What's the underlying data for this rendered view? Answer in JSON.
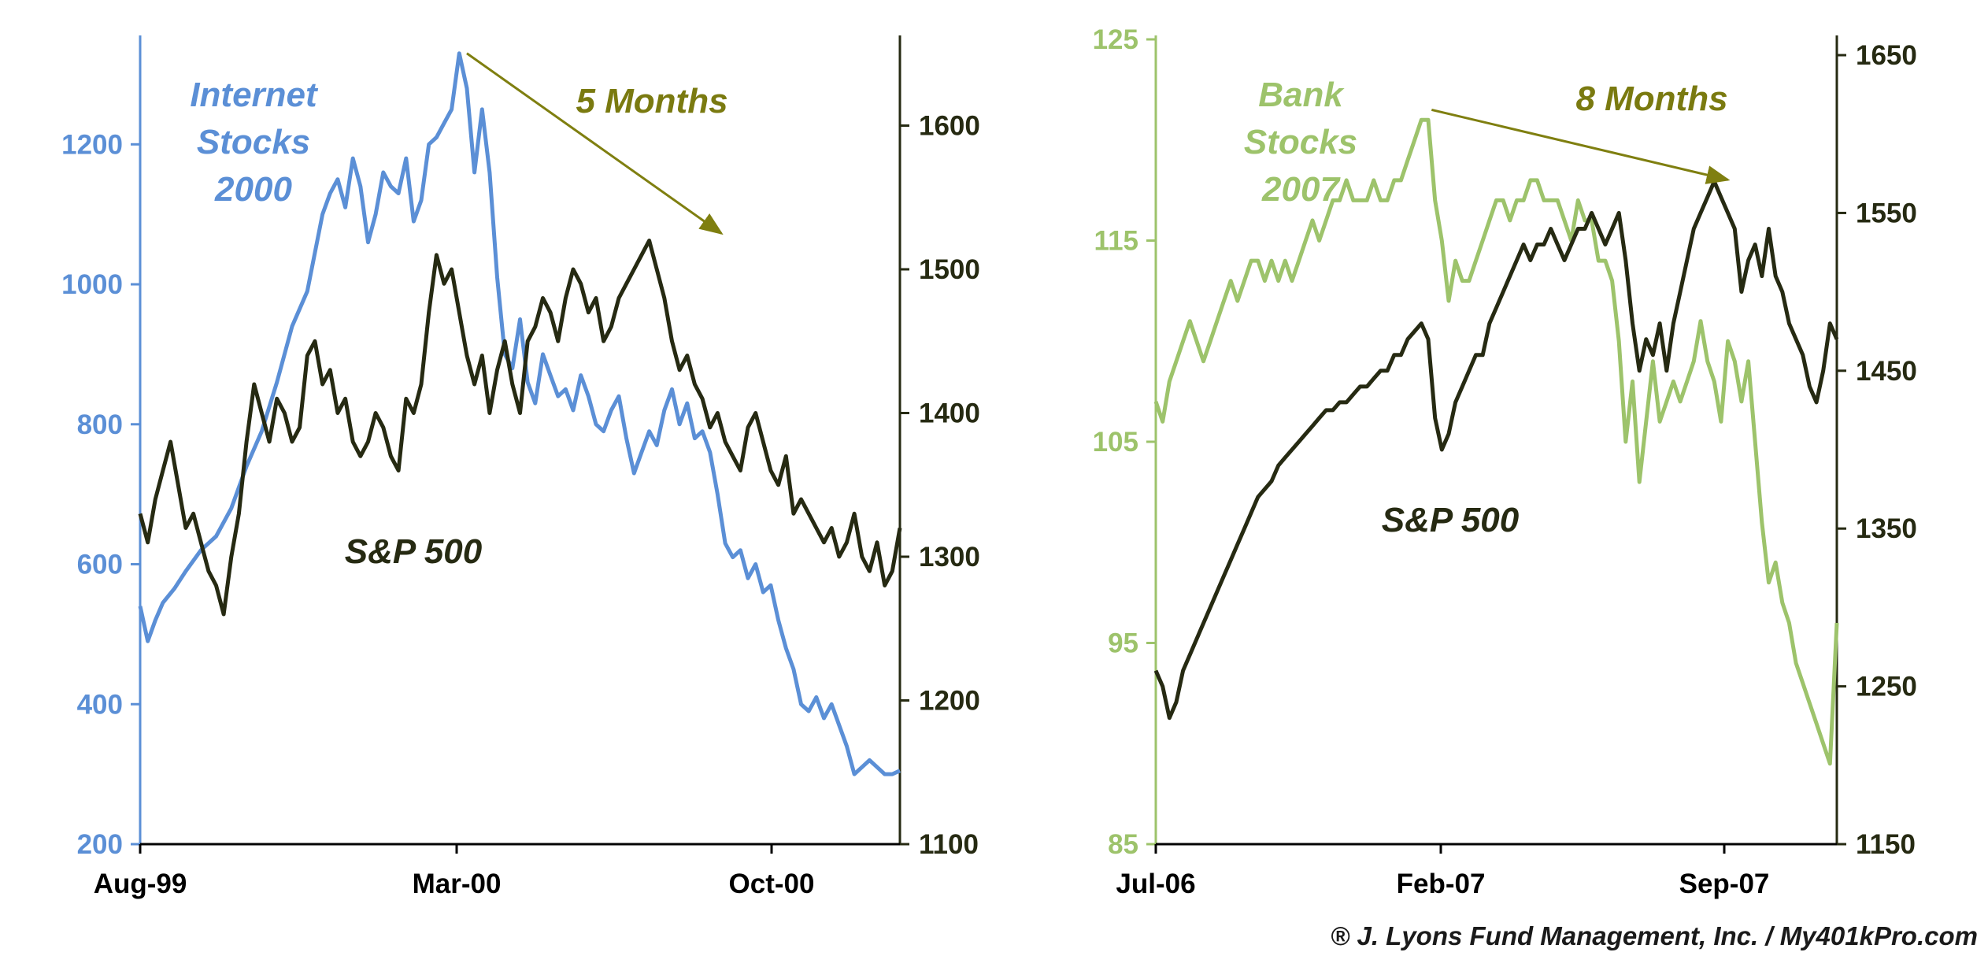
{
  "colors": {
    "internet": "#5B8FD6",
    "sp500": "#262A12",
    "bank": "#9DC36B",
    "months_text": "#7A7A10",
    "arrow": "#7F7F10"
  },
  "credit": "® J. Lyons Fund Management, Inc. / My401kPro.com",
  "chart_data": [
    {
      "type": "line",
      "title": "",
      "x_categories": [
        "Aug-99",
        "Mar-00",
        "Oct-00"
      ],
      "left_axis": {
        "ticks": [
          200,
          400,
          600,
          800,
          1000,
          1200
        ],
        "range": [
          200,
          1350
        ],
        "color": "#5B8FD6"
      },
      "right_axis": {
        "ticks": [
          1100,
          1200,
          1300,
          1400,
          1500,
          1600
        ],
        "range": [
          1100,
          1660
        ],
        "color": "#262A12"
      },
      "annotations": {
        "series_label_lines": [
          "Internet",
          "Stocks",
          "2000"
        ],
        "sp_label": "S&P 500",
        "months_label": "5 Months"
      },
      "arrow": {
        "from": {
          "x": 0.43,
          "value": 1330,
          "axis": "left"
        },
        "to": {
          "x": 0.765,
          "value": 1525,
          "axis": "right"
        }
      },
      "series": [
        {
          "axis": "left",
          "x": [
            0.0,
            0.01,
            0.02,
            0.03,
            0.045,
            0.06,
            0.08,
            0.1,
            0.12,
            0.14,
            0.16,
            0.18,
            0.2,
            0.22,
            0.24,
            0.25,
            0.26,
            0.27,
            0.28,
            0.29,
            0.3,
            0.31,
            0.32,
            0.33,
            0.34,
            0.35,
            0.36,
            0.37,
            0.38,
            0.39,
            0.4,
            0.41,
            0.42,
            0.43,
            0.44,
            0.45,
            0.46,
            0.47,
            0.48,
            0.49,
            0.5,
            0.51,
            0.52,
            0.53,
            0.54,
            0.55,
            0.56,
            0.57,
            0.58,
            0.59,
            0.6,
            0.61,
            0.62,
            0.63,
            0.64,
            0.65,
            0.66,
            0.67,
            0.68,
            0.69,
            0.7,
            0.71,
            0.72,
            0.73,
            0.74,
            0.75,
            0.76,
            0.77,
            0.78,
            0.79,
            0.8,
            0.81,
            0.82,
            0.83,
            0.84,
            0.85,
            0.86,
            0.87,
            0.88,
            0.89,
            0.9,
            0.91,
            0.92,
            0.93,
            0.94,
            0.95,
            0.96,
            0.97,
            0.98,
            0.99,
            1.0
          ],
          "values": [
            540,
            490,
            520,
            545,
            565,
            590,
            620,
            640,
            680,
            740,
            790,
            860,
            940,
            990,
            1100,
            1130,
            1150,
            1110,
            1180,
            1140,
            1060,
            1100,
            1160,
            1140,
            1130,
            1180,
            1090,
            1120,
            1200,
            1210,
            1230,
            1250,
            1330,
            1280,
            1160,
            1250,
            1160,
            1010,
            900,
            880,
            950,
            860,
            830,
            900,
            870,
            840,
            850,
            820,
            870,
            840,
            800,
            790,
            820,
            840,
            780,
            730,
            760,
            790,
            770,
            820,
            850,
            800,
            830,
            780,
            790,
            760,
            700,
            630,
            610,
            620,
            580,
            600,
            560,
            570,
            520,
            480,
            450,
            400,
            390,
            410,
            380,
            400,
            370,
            340,
            300,
            310,
            320,
            310,
            300,
            300,
            305
          ]
        },
        {
          "axis": "right",
          "x": [
            0.0,
            0.01,
            0.02,
            0.03,
            0.04,
            0.05,
            0.06,
            0.07,
            0.08,
            0.09,
            0.1,
            0.11,
            0.12,
            0.13,
            0.14,
            0.15,
            0.16,
            0.17,
            0.18,
            0.19,
            0.2,
            0.21,
            0.22,
            0.23,
            0.24,
            0.25,
            0.26,
            0.27,
            0.28,
            0.29,
            0.3,
            0.31,
            0.32,
            0.33,
            0.34,
            0.35,
            0.36,
            0.37,
            0.38,
            0.39,
            0.4,
            0.41,
            0.42,
            0.43,
            0.44,
            0.45,
            0.46,
            0.47,
            0.48,
            0.49,
            0.5,
            0.51,
            0.52,
            0.53,
            0.54,
            0.55,
            0.56,
            0.57,
            0.58,
            0.59,
            0.6,
            0.61,
            0.62,
            0.63,
            0.64,
            0.65,
            0.66,
            0.67,
            0.68,
            0.69,
            0.7,
            0.71,
            0.72,
            0.73,
            0.74,
            0.75,
            0.76,
            0.77,
            0.78,
            0.79,
            0.8,
            0.81,
            0.82,
            0.83,
            0.84,
            0.85,
            0.86,
            0.87,
            0.88,
            0.89,
            0.9,
            0.91,
            0.92,
            0.93,
            0.94,
            0.95,
            0.96,
            0.97,
            0.98,
            0.99,
            1.0
          ],
          "values": [
            1330,
            1310,
            1340,
            1360,
            1380,
            1350,
            1320,
            1330,
            1310,
            1290,
            1280,
            1260,
            1300,
            1330,
            1380,
            1420,
            1400,
            1380,
            1410,
            1400,
            1380,
            1390,
            1440,
            1450,
            1420,
            1430,
            1400,
            1410,
            1380,
            1370,
            1380,
            1400,
            1390,
            1370,
            1360,
            1410,
            1400,
            1420,
            1470,
            1510,
            1490,
            1500,
            1470,
            1440,
            1420,
            1440,
            1400,
            1430,
            1450,
            1420,
            1400,
            1450,
            1460,
            1480,
            1470,
            1450,
            1480,
            1500,
            1490,
            1470,
            1480,
            1450,
            1460,
            1480,
            1490,
            1500,
            1510,
            1520,
            1500,
            1480,
            1450,
            1430,
            1440,
            1420,
            1410,
            1390,
            1400,
            1380,
            1370,
            1360,
            1390,
            1400,
            1380,
            1360,
            1350,
            1370,
            1330,
            1340,
            1330,
            1320,
            1310,
            1320,
            1300,
            1310,
            1330,
            1300,
            1290,
            1310,
            1280,
            1290,
            1320
          ]
        }
      ]
    },
    {
      "type": "line",
      "title": "",
      "x_categories": [
        "Jul-06",
        "Feb-07",
        "Sep-07"
      ],
      "left_axis": {
        "ticks": [
          85,
          95,
          105,
          115,
          125
        ],
        "range": [
          85,
          125
        ],
        "color": "#9DC36B"
      },
      "right_axis": {
        "ticks": [
          1150,
          1250,
          1350,
          1450,
          1550,
          1650
        ],
        "range": [
          1150,
          1660
        ],
        "color": "#262A12"
      },
      "annotations": {
        "series_label_lines": [
          "Bank",
          "Stocks",
          "2007"
        ],
        "sp_label": "S&P 500",
        "months_label": "8 Months"
      },
      "arrow": {
        "from": {
          "x": 0.405,
          "value": 121.5,
          "axis": "left"
        },
        "to": {
          "x": 0.84,
          "value": 1571,
          "axis": "right"
        }
      },
      "series": [
        {
          "axis": "left",
          "x": [
            0.0,
            0.01,
            0.02,
            0.03,
            0.04,
            0.05,
            0.06,
            0.07,
            0.08,
            0.09,
            0.1,
            0.11,
            0.12,
            0.13,
            0.14,
            0.15,
            0.16,
            0.17,
            0.18,
            0.19,
            0.2,
            0.21,
            0.22,
            0.23,
            0.24,
            0.25,
            0.26,
            0.27,
            0.28,
            0.29,
            0.3,
            0.31,
            0.32,
            0.33,
            0.34,
            0.35,
            0.36,
            0.37,
            0.38,
            0.39,
            0.4,
            0.41,
            0.42,
            0.43,
            0.44,
            0.45,
            0.46,
            0.47,
            0.48,
            0.49,
            0.5,
            0.51,
            0.52,
            0.53,
            0.54,
            0.55,
            0.56,
            0.57,
            0.58,
            0.59,
            0.6,
            0.61,
            0.62,
            0.63,
            0.64,
            0.65,
            0.66,
            0.67,
            0.68,
            0.69,
            0.7,
            0.71,
            0.72,
            0.73,
            0.74,
            0.75,
            0.76,
            0.77,
            0.78,
            0.79,
            0.8,
            0.81,
            0.82,
            0.83,
            0.84,
            0.85,
            0.86,
            0.87,
            0.88,
            0.89,
            0.9,
            0.91,
            0.92,
            0.93,
            0.94,
            0.95,
            0.96,
            0.97,
            0.98,
            0.99,
            1.0
          ],
          "values": [
            107,
            106,
            108,
            109,
            110,
            111,
            110,
            109,
            110,
            111,
            112,
            113,
            112,
            113,
            114,
            114,
            113,
            114,
            113,
            114,
            113,
            114,
            115,
            116,
            115,
            116,
            117,
            117,
            118,
            117,
            117,
            117,
            118,
            117,
            117,
            118,
            118,
            119,
            120,
            121,
            121,
            117,
            115,
            112,
            114,
            113,
            113,
            114,
            115,
            116,
            117,
            117,
            116,
            117,
            117,
            118,
            118,
            117,
            117,
            117,
            116,
            115,
            117,
            116,
            116,
            114,
            114,
            113,
            110,
            105,
            108,
            103,
            106,
            109,
            106,
            107,
            108,
            107,
            108,
            109,
            111,
            109,
            108,
            106,
            110,
            109,
            107,
            109,
            105,
            101,
            98,
            99,
            97,
            96,
            94,
            93,
            92,
            91,
            90,
            89,
            96
          ]
        },
        {
          "axis": "right",
          "x": [
            0.0,
            0.01,
            0.02,
            0.03,
            0.04,
            0.05,
            0.06,
            0.07,
            0.08,
            0.09,
            0.1,
            0.11,
            0.12,
            0.13,
            0.14,
            0.15,
            0.16,
            0.17,
            0.18,
            0.19,
            0.2,
            0.21,
            0.22,
            0.23,
            0.24,
            0.25,
            0.26,
            0.27,
            0.28,
            0.29,
            0.3,
            0.31,
            0.32,
            0.33,
            0.34,
            0.35,
            0.36,
            0.37,
            0.38,
            0.39,
            0.4,
            0.41,
            0.42,
            0.43,
            0.44,
            0.45,
            0.46,
            0.47,
            0.48,
            0.49,
            0.5,
            0.51,
            0.52,
            0.53,
            0.54,
            0.55,
            0.56,
            0.57,
            0.58,
            0.59,
            0.6,
            0.61,
            0.62,
            0.63,
            0.64,
            0.65,
            0.66,
            0.67,
            0.68,
            0.69,
            0.7,
            0.71,
            0.72,
            0.73,
            0.74,
            0.75,
            0.76,
            0.77,
            0.78,
            0.79,
            0.8,
            0.81,
            0.82,
            0.83,
            0.84,
            0.85,
            0.86,
            0.87,
            0.88,
            0.89,
            0.9,
            0.91,
            0.92,
            0.93,
            0.94,
            0.95,
            0.96,
            0.97,
            0.98,
            0.99,
            1.0
          ],
          "values": [
            1260,
            1250,
            1230,
            1240,
            1260,
            1270,
            1280,
            1290,
            1300,
            1310,
            1320,
            1330,
            1340,
            1350,
            1360,
            1370,
            1375,
            1380,
            1390,
            1395,
            1400,
            1405,
            1410,
            1415,
            1420,
            1425,
            1425,
            1430,
            1430,
            1435,
            1440,
            1440,
            1445,
            1450,
            1450,
            1460,
            1460,
            1470,
            1475,
            1480,
            1470,
            1420,
            1400,
            1410,
            1430,
            1440,
            1450,
            1460,
            1460,
            1480,
            1490,
            1500,
            1510,
            1520,
            1530,
            1520,
            1530,
            1530,
            1540,
            1530,
            1520,
            1530,
            1540,
            1540,
            1550,
            1540,
            1530,
            1540,
            1550,
            1520,
            1480,
            1450,
            1470,
            1460,
            1480,
            1450,
            1480,
            1500,
            1520,
            1540,
            1550,
            1560,
            1570,
            1560,
            1550,
            1540,
            1500,
            1520,
            1530,
            1510,
            1540,
            1510,
            1500,
            1480,
            1470,
            1460,
            1440,
            1430,
            1450,
            1480,
            1470
          ]
        }
      ]
    }
  ]
}
